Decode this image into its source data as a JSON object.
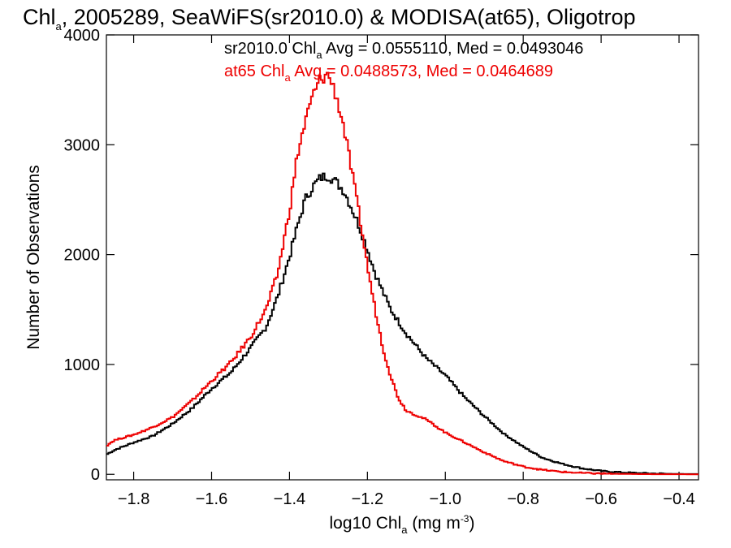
{
  "chart_data": {
    "type": "line",
    "title": {
      "pre": "Chl",
      "sub": "a",
      "post": ", 2005289, SeaWiFS(sr2010.0) & MODISA(at65), Oligotrop"
    },
    "xlabel": {
      "pre": "log10 Chl",
      "sub": "a",
      "mid": " (mg m",
      "sup": "-3",
      "post": ")"
    },
    "ylabel": "Number of Observations",
    "xlim": [
      -1.87,
      -0.35
    ],
    "ylim": [
      -50,
      4000
    ],
    "x_ticks": [
      {
        "v": -1.8,
        "label": "−1.8"
      },
      {
        "v": -1.6,
        "label": "−1.6"
      },
      {
        "v": -1.4,
        "label": "−1.4"
      },
      {
        "v": -1.2,
        "label": "−1.2"
      },
      {
        "v": -1.0,
        "label": "−1.0"
      },
      {
        "v": -0.8,
        "label": "−0.8"
      },
      {
        "v": -0.6,
        "label": "−0.6"
      },
      {
        "v": -0.4,
        "label": "−0.4"
      }
    ],
    "y_ticks": [
      {
        "v": 0,
        "label": "0"
      },
      {
        "v": 1000,
        "label": "1000"
      },
      {
        "v": 2000,
        "label": "2000"
      },
      {
        "v": 3000,
        "label": "3000"
      },
      {
        "v": 4000,
        "label": "4000"
      }
    ],
    "grid": false,
    "legend_position": "top-right",
    "series": [
      {
        "name": "sr2010.0",
        "color": "#000000",
        "legend": {
          "pre": "sr2010.0 Chl",
          "sub": "a",
          "post": " Avg = 0.0555110, Med = 0.0493046"
        },
        "x": [
          -1.87,
          -1.85,
          -1.8,
          -1.75,
          -1.7,
          -1.65,
          -1.6,
          -1.55,
          -1.5,
          -1.46,
          -1.43,
          -1.4,
          -1.38,
          -1.36,
          -1.34,
          -1.32,
          -1.3,
          -1.28,
          -1.26,
          -1.24,
          -1.22,
          -1.2,
          -1.18,
          -1.16,
          -1.14,
          -1.12,
          -1.1,
          -1.05,
          -1.0,
          -0.95,
          -0.9,
          -0.85,
          -0.8,
          -0.75,
          -0.7,
          -0.65,
          -0.6,
          -0.55,
          -0.5,
          -0.45,
          -0.4,
          -0.35
        ],
        "y": [
          180,
          220,
          290,
          350,
          460,
          600,
          780,
          930,
          1150,
          1340,
          1620,
          1980,
          2250,
          2500,
          2620,
          2700,
          2720,
          2660,
          2580,
          2420,
          2250,
          2050,
          1830,
          1660,
          1500,
          1390,
          1280,
          1060,
          900,
          700,
          530,
          370,
          250,
          150,
          95,
          55,
          30,
          18,
          10,
          6,
          3,
          2
        ]
      },
      {
        "name": "at65",
        "color": "#ee0000",
        "legend": {
          "pre": "at65 Chl",
          "sub": "a",
          "post": " Avg = 0.0488573, Med = 0.0464689"
        },
        "x": [
          -1.87,
          -1.85,
          -1.8,
          -1.75,
          -1.7,
          -1.65,
          -1.6,
          -1.55,
          -1.5,
          -1.46,
          -1.43,
          -1.4,
          -1.38,
          -1.36,
          -1.34,
          -1.32,
          -1.3,
          -1.28,
          -1.26,
          -1.24,
          -1.22,
          -1.2,
          -1.18,
          -1.16,
          -1.14,
          -1.12,
          -1.1,
          -1.05,
          -1.0,
          -0.95,
          -0.9,
          -0.85,
          -0.8,
          -0.75,
          -0.7,
          -0.65,
          -0.6,
          -0.55,
          -0.5,
          -0.45,
          -0.4,
          -0.35
        ],
        "y": [
          260,
          310,
          360,
          430,
          520,
          670,
          850,
          1020,
          1250,
          1500,
          1830,
          2400,
          2900,
          3200,
          3450,
          3600,
          3640,
          3450,
          3150,
          2750,
          2350,
          1900,
          1500,
          1150,
          890,
          690,
          580,
          500,
          380,
          290,
          200,
          120,
          70,
          40,
          22,
          12,
          7,
          4,
          2,
          1,
          1,
          0
        ]
      }
    ]
  }
}
